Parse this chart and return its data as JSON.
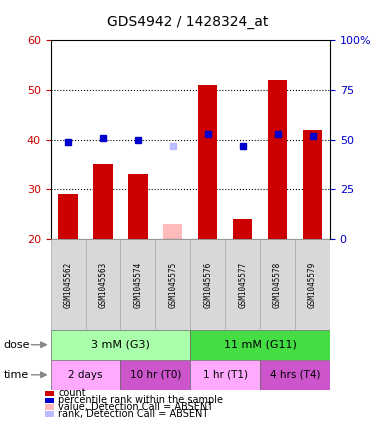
{
  "title": "GDS4942 / 1428324_at",
  "samples": [
    "GSM1045562",
    "GSM1045563",
    "GSM1045574",
    "GSM1045575",
    "GSM1045576",
    "GSM1045577",
    "GSM1045578",
    "GSM1045579"
  ],
  "bar_values": [
    29,
    35,
    33,
    null,
    51,
    24,
    52,
    42
  ],
  "absent_bar_value": 23,
  "absent_bar_index": 3,
  "rank_pct": [
    49,
    51,
    50,
    null,
    53,
    47,
    53,
    52
  ],
  "absent_rank_pct": 47,
  "absent_rank_index": 3,
  "ylim_left": [
    20,
    60
  ],
  "ylim_right": [
    0,
    100
  ],
  "yticks_left": [
    20,
    30,
    40,
    50,
    60
  ],
  "yticks_right": [
    0,
    25,
    50,
    75,
    100
  ],
  "ytick_labels_right": [
    "0",
    "25",
    "50",
    "75",
    "100%"
  ],
  "dose_groups": [
    {
      "label": "3 mM (G3)",
      "color": "#aaffaa",
      "start": 0,
      "end": 4
    },
    {
      "label": "11 mM (G11)",
      "color": "#44dd44",
      "start": 4,
      "end": 8
    }
  ],
  "time_colors": [
    "#ffaaff",
    "#cc55cc",
    "#ffaaff",
    "#cc55cc"
  ],
  "time_groups": [
    {
      "label": "2 days",
      "start": 0,
      "end": 2
    },
    {
      "label": "10 hr (T0)",
      "start": 2,
      "end": 4
    },
    {
      "label": "1 hr (T1)",
      "start": 4,
      "end": 6
    },
    {
      "label": "4 hrs (T4)",
      "start": 6,
      "end": 8
    }
  ],
  "legend_items": [
    {
      "color": "#cc0000",
      "label": "count"
    },
    {
      "color": "#0000cc",
      "label": "percentile rank within the sample"
    },
    {
      "color": "#ffbbbb",
      "label": "value, Detection Call = ABSENT"
    },
    {
      "color": "#bbbbff",
      "label": "rank, Detection Call = ABSENT"
    }
  ],
  "bar_width": 0.55,
  "axis_color_left": "#cc0000",
  "axis_color_right": "#0000cc",
  "bar_color": "#cc0000",
  "absent_bar_color": "#ffbbbb",
  "rank_color": "#0000cc",
  "absent_rank_color": "#bbbbff"
}
